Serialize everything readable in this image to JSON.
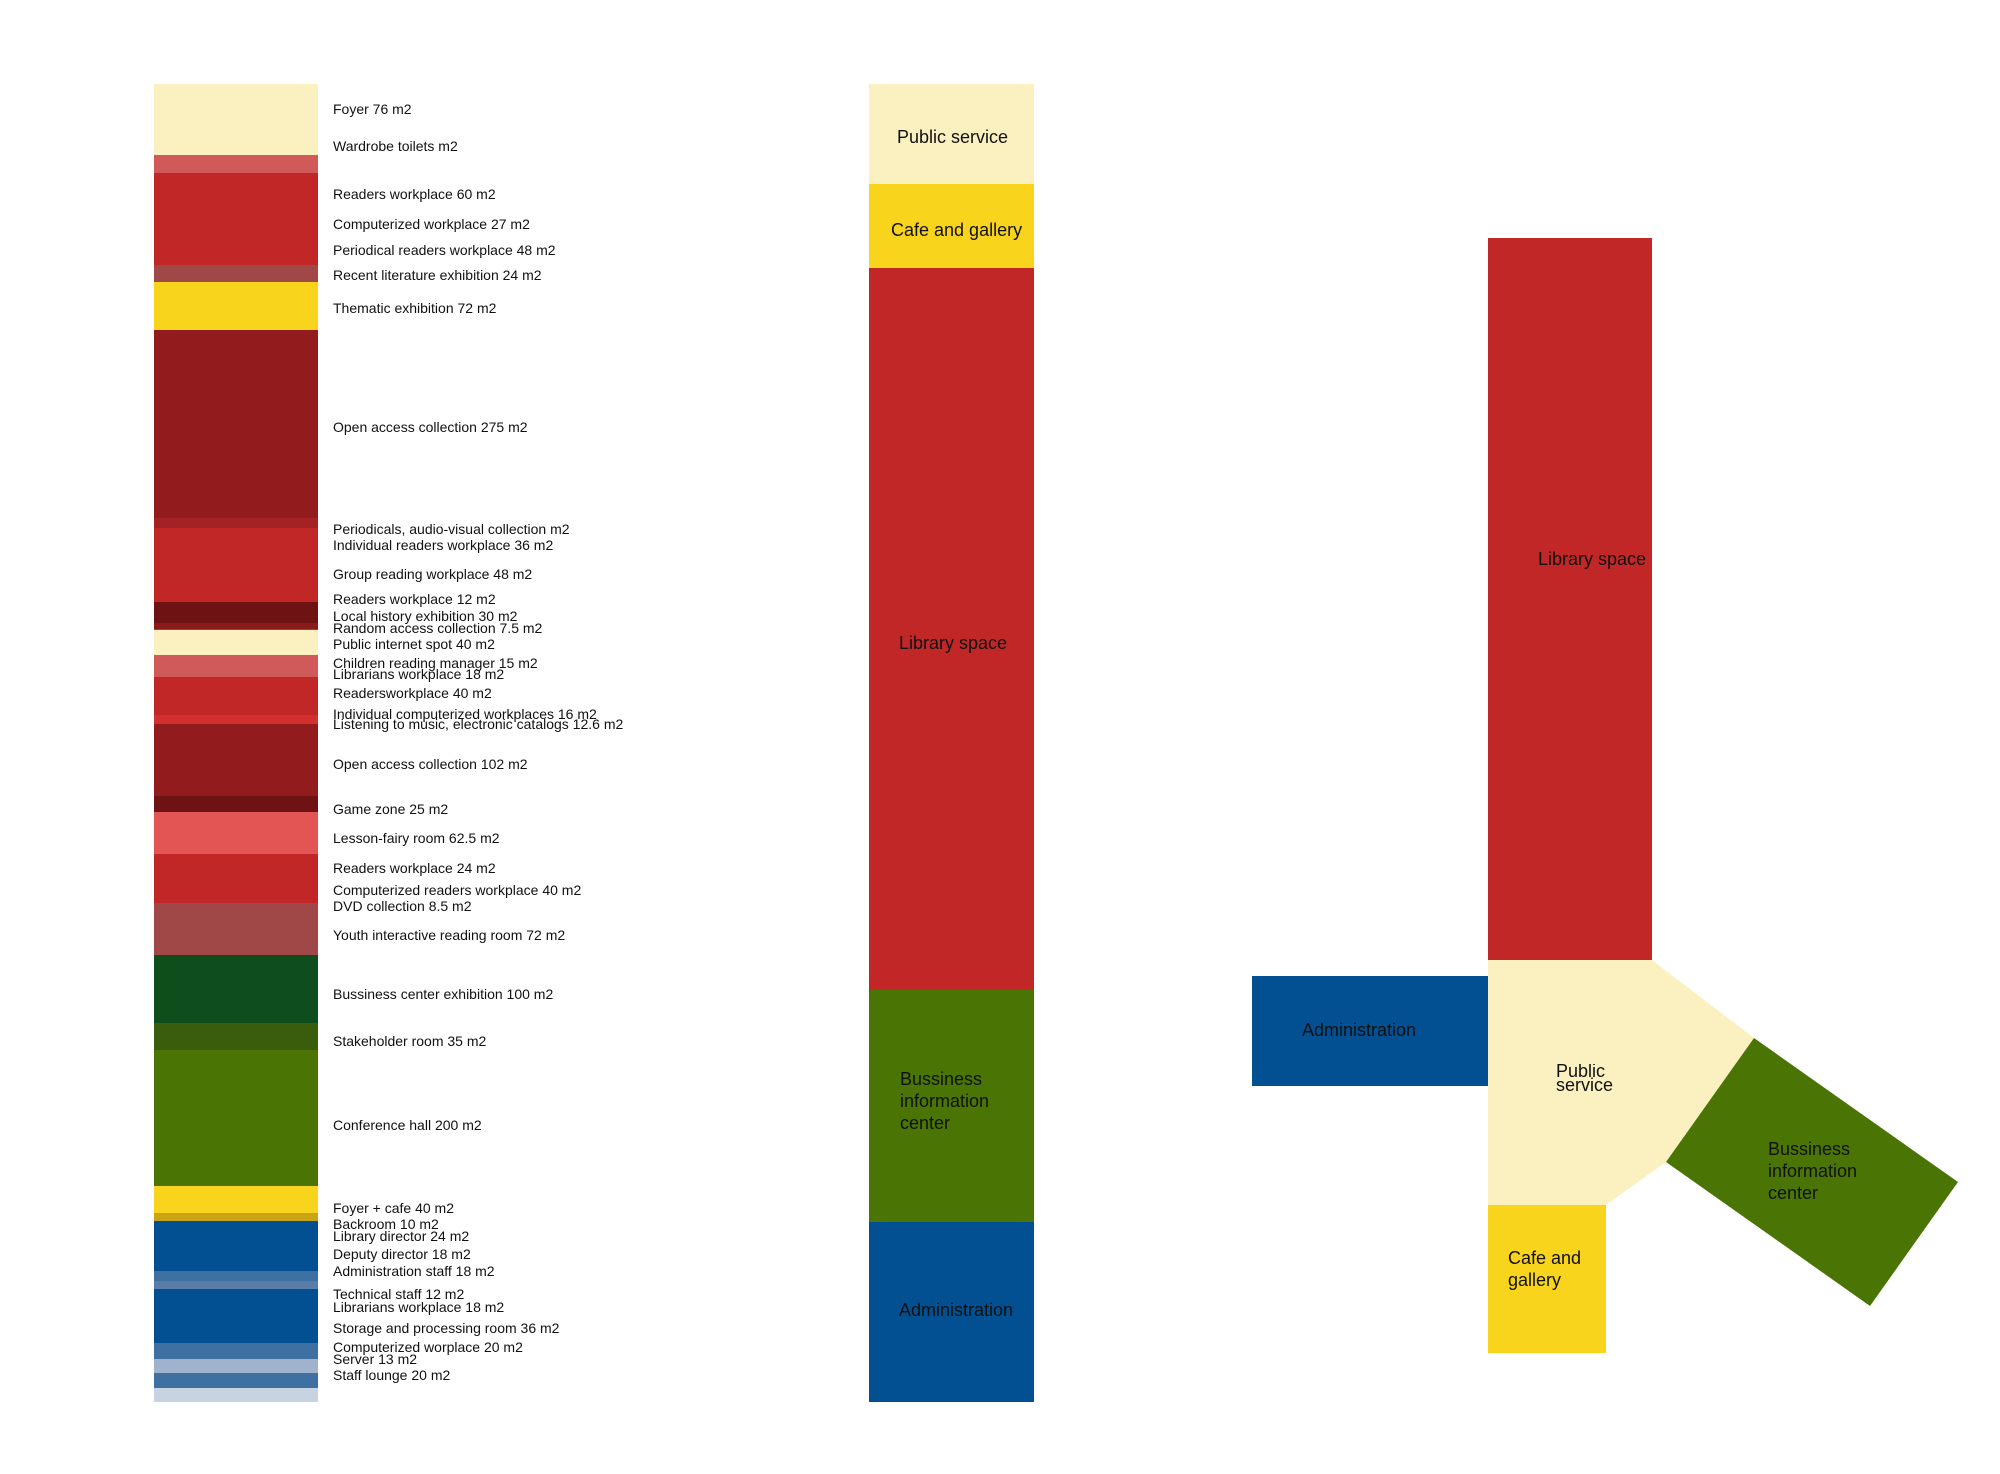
{
  "rooms": [
    {
      "label": "Foyer 76 m2",
      "color": "#fbf0bf"
    },
    {
      "label": "Wardrobe toilets m2",
      "color": "#fbf0bf"
    },
    {
      "label": "",
      "color": "#d05a5a"
    },
    {
      "label": "Readers workplace 60 m2",
      "color": "#c22728"
    },
    {
      "label": "Computerized workplace 27 m2",
      "color": "#c22728"
    },
    {
      "label": "Periodical readers workplace 48 m2",
      "color": "#c22728"
    },
    {
      "label": "Recent literature exhibition 24 m2",
      "color": "#a04848"
    },
    {
      "label": "Thematic exhibition 72 m2",
      "color": "#f9d41d"
    },
    {
      "label": "Open access collection 275 m2",
      "color": "#921c1d"
    },
    {
      "label": "Periodicals, audio-visual collection m2",
      "color": "#a52224"
    },
    {
      "label": "Individual readers workplace 36 m2",
      "color": "#c22728"
    },
    {
      "label": "Group reading workplace 48 m2",
      "color": "#c22728"
    },
    {
      "label": "Readers workplace 12 m2",
      "color": "#6e1213"
    },
    {
      "label": "Local history exhibition 30 m2",
      "color": "#8b1a1b"
    },
    {
      "label": "Random access collection 7.5 m2",
      "color": "#b43a3a"
    },
    {
      "label": "Public internet spot 40 m2",
      "color": "#fbf0bf"
    },
    {
      "label": "Children reading manager 15 m2",
      "color": "#d05a5a"
    },
    {
      "label": "Librarians workplace 18 m2",
      "color": "#d05a5a"
    },
    {
      "label": "Readersworkplace 40 m2",
      "color": "#c22728"
    },
    {
      "label": "Individual computerized workplaces 16 m2",
      "color": "#d32f2f"
    },
    {
      "label": "Listening to music, electronic catalogs 12.6 m2",
      "color": "#d32f2f"
    },
    {
      "label": "Open access collection 102 m2",
      "color": "#921c1d"
    },
    {
      "label": "Game zone 25 m2",
      "color": "#6e1213"
    },
    {
      "label": "Lesson-fairy room 62.5 m2",
      "color": "#e35454"
    },
    {
      "label": "Readers workplace 24 m2",
      "color": "#c22728"
    },
    {
      "label": "Computerized readers workplace 40 m2",
      "color": "#c22728"
    },
    {
      "label": "DVD collection 8.5 m2",
      "color": "#a04848"
    },
    {
      "label": "Youth interactive reading room 72 m2",
      "color": "#c77a7a"
    },
    {
      "label": "Bussiness center exhibition 100 m2",
      "color": "#0e4e1c"
    },
    {
      "label": "Stakeholder room 35 m2",
      "color": "#3a5c0d"
    },
    {
      "label": "Conference hall 200 m2",
      "color": "#4a7504"
    },
    {
      "label": "Foyer + cafe 40 m2",
      "color": "#f9d41d"
    },
    {
      "label": "Backroom 10 m2",
      "color": "#c9a415"
    },
    {
      "label": "Library director 24 m2",
      "color": "#024f92"
    },
    {
      "label": "Deputy director 18 m2",
      "color": "#024f92"
    },
    {
      "label": "Administration staff 18 m2",
      "color": "#3f70a2"
    },
    {
      "label": "Technical staff 12 m2",
      "color": "#5a7ea8"
    },
    {
      "label": "Librarians workplace 18 m2",
      "color": "#024f92"
    },
    {
      "label": "Storage and processing room 36 m2",
      "color": "#024f92"
    },
    {
      "label": "Computerized worplace 20 m2",
      "color": "#3f70a2"
    },
    {
      "label": "Server 13 m2",
      "color": "#9fb4cc"
    },
    {
      "label": "Staff lounge 20 m2",
      "color": "#3f70a2"
    },
    {
      "label": "",
      "color": "#c8d3e2"
    }
  ],
  "zones": [
    {
      "label": "Public service",
      "color": "#fbf0bf"
    },
    {
      "label": "Cafe and gallery",
      "color": "#f9d41d"
    },
    {
      "label": "Library space",
      "color": "#c22728"
    },
    {
      "label": "Bussiness information center",
      "color": "#4a7504"
    },
    {
      "label": "Administration",
      "color": "#024f92"
    }
  ],
  "diagram": {
    "library": "Library space",
    "administration": "Administration",
    "public_service": "Public service",
    "business": "Bussiness information center",
    "cafe": "Cafe and gallery"
  },
  "colors": {
    "cream": "#fbf0bf",
    "red": "#c22728",
    "yellow": "#f9d41d",
    "green": "#4a7504",
    "blue": "#024f92"
  }
}
